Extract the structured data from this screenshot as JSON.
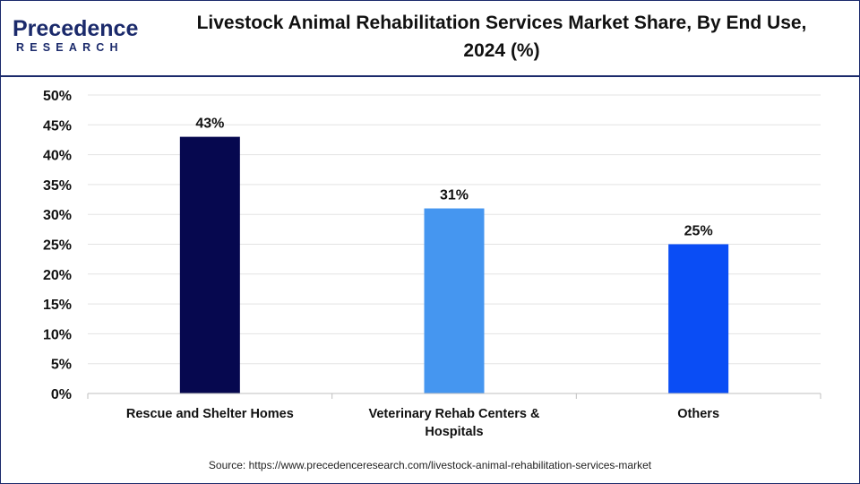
{
  "header": {
    "logo_main": "Precedence",
    "logo_sub": "RESEARCH",
    "title_line1": "Livestock Animal Rehabilitation Services Market Share, By End Use,",
    "title_line2": "2024 (%)"
  },
  "footer": {
    "source": "Source: https://www.precedenceresearch.com/livestock-animal-rehabilitation-services-market"
  },
  "chart_data": {
    "type": "bar",
    "title": "Livestock Animal Rehabilitation Services Market Share, By End Use, 2024 (%)",
    "categories": [
      "Rescue and Shelter Homes",
      "Veterinary Rehab Centers & Hospitals",
      "Others"
    ],
    "category_lines": [
      [
        "Rescue and Shelter Homes"
      ],
      [
        "Veterinary Rehab Centers &",
        "Hospitals"
      ],
      [
        "Others"
      ]
    ],
    "values": [
      43,
      31,
      25
    ],
    "data_labels": [
      "43%",
      "31%",
      "25%"
    ],
    "bar_colors": [
      "#06084f",
      "#4596f0",
      "#0a4df5"
    ],
    "ylim": [
      0,
      50
    ],
    "yticks": [
      0,
      5,
      10,
      15,
      20,
      25,
      30,
      35,
      40,
      45,
      50
    ],
    "ytick_labels": [
      "0%",
      "5%",
      "10%",
      "15%",
      "20%",
      "25%",
      "30%",
      "35%",
      "40%",
      "45%",
      "50%"
    ],
    "xlabel": "",
    "ylabel": "",
    "grid": true
  }
}
